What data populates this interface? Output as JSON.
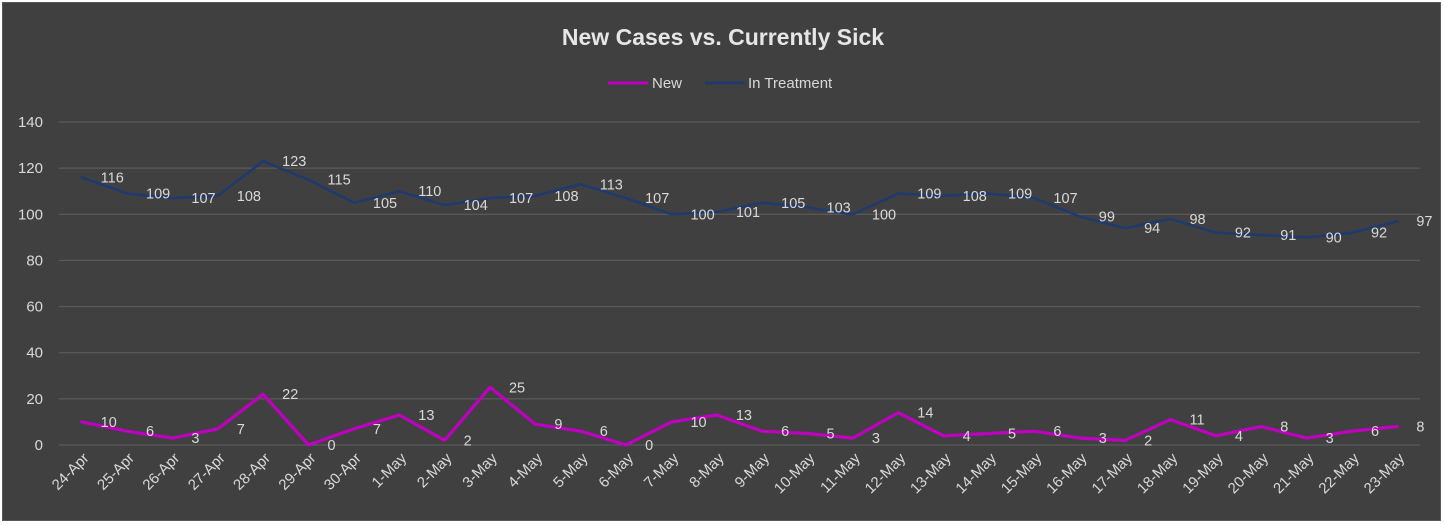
{
  "chart_data": {
    "type": "line",
    "title": "New Cases vs. Currently Sick",
    "xlabel": "",
    "ylabel": "",
    "ylim": [
      0,
      140
    ],
    "yticks": [
      0,
      20,
      40,
      60,
      80,
      100,
      120,
      140
    ],
    "grid": true,
    "legend_position": "top",
    "categories": [
      "24-Apr",
      "25-Apr",
      "26-Apr",
      "27-Apr",
      "28-Apr",
      "29-Apr",
      "30-Apr",
      "1-May",
      "2-May",
      "3-May",
      "4-May",
      "5-May",
      "6-May",
      "7-May",
      "8-May",
      "9-May",
      "10-May",
      "11-May",
      "12-May",
      "13-May",
      "14-May",
      "15-May",
      "16-May",
      "17-May",
      "18-May",
      "19-May",
      "20-May",
      "21-May",
      "22-May",
      "23-May"
    ],
    "series": [
      {
        "name": "New",
        "color": "#c000c0",
        "values": [
          10,
          6,
          3,
          7,
          22,
          0,
          7,
          13,
          2,
          25,
          9,
          6,
          0,
          10,
          13,
          6,
          5,
          3,
          14,
          4,
          5,
          6,
          3,
          2,
          11,
          4,
          8,
          3,
          6,
          8
        ]
      },
      {
        "name": "In Treatment",
        "color": "#1f3a6e",
        "values": [
          116,
          109,
          107,
          108,
          123,
          115,
          105,
          110,
          104,
          107,
          108,
          113,
          107,
          100,
          101,
          105,
          103,
          100,
          109,
          108,
          109,
          107,
          99,
          94,
          98,
          92,
          91,
          90,
          92,
          97
        ]
      }
    ]
  }
}
